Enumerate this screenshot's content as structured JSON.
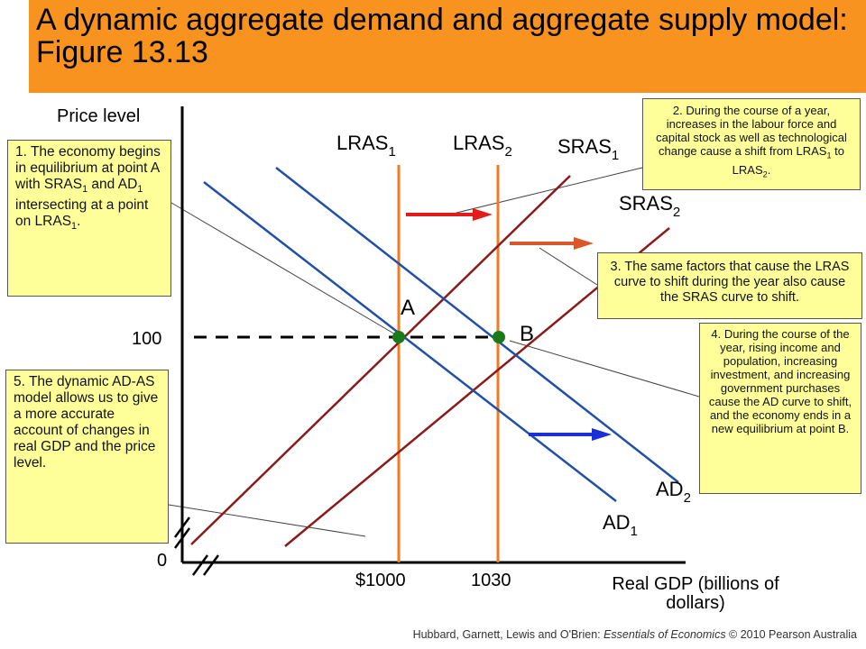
{
  "title": "A dynamic aggregate demand and aggregate supply model: Figure 13.13",
  "axes": {
    "y_label": "Price level",
    "x_label_line1": "Real GDP (billions of",
    "x_label_line2": "dollars)",
    "origin_label": "0",
    "y_tick_100": "100",
    "x_tick_1000": "$1000",
    "x_tick_1030": "1030"
  },
  "curves": {
    "lras1_base": "LRAS",
    "lras1_sub": "1",
    "lras2_base": "LRAS",
    "lras2_sub": "2",
    "sras1_base": "SRAS",
    "sras1_sub": "1",
    "sras2_base": "SRAS",
    "sras2_sub": "2",
    "ad1_base": "AD",
    "ad1_sub": "1",
    "ad2_base": "AD",
    "ad2_sub": "2"
  },
  "points": {
    "a": "A",
    "b": "B"
  },
  "colors": {
    "title_bar": "#f7931e",
    "lras": "#f47b20",
    "sras": "#8b1a1a",
    "ad": "#1f4fa8",
    "point": "#1a7a1a",
    "arrow_lras": "#e31b1b",
    "arrow_sras": "#d9582b",
    "arrow_ad": "#1a2fd6",
    "note_bg": "#ffff99"
  },
  "notes": {
    "n1_a": "1. The economy begins in equilibrium at point A with SRAS",
    "n1_a_sub": "1",
    "n1_b": " and AD",
    "n1_b_sub": "1",
    "n1_c": " intersecting at a point on LRAS",
    "n1_c_sub": "1",
    "n1_d": ".",
    "n2_a": "2. During the course of a year, increases in the labour force and capital stock as well as technological change cause a shift from LRAS",
    "n2_a_sub": "1",
    "n2_b": " to LRAS",
    "n2_b_sub": "2",
    "n2_c": ".",
    "n3": "3. The same factors that cause the LRAS curve to shift during the year also cause the SRAS curve to shift.",
    "n4": "4. During the course of the year, rising income and population, increasing investment, and increasing government purchases cause the AD curve to shift, and the economy ends in a new equilibrium at point B.",
    "n5": "5. The dynamic AD-AS model allows us to give a more accurate account of changes in real GDP and the price level."
  },
  "footer": {
    "authors": "Hubbard, Garnett, Lewis and O'Brien: ",
    "book": "Essentials of Economics",
    "rights": " © 2010 Pearson Australia"
  }
}
